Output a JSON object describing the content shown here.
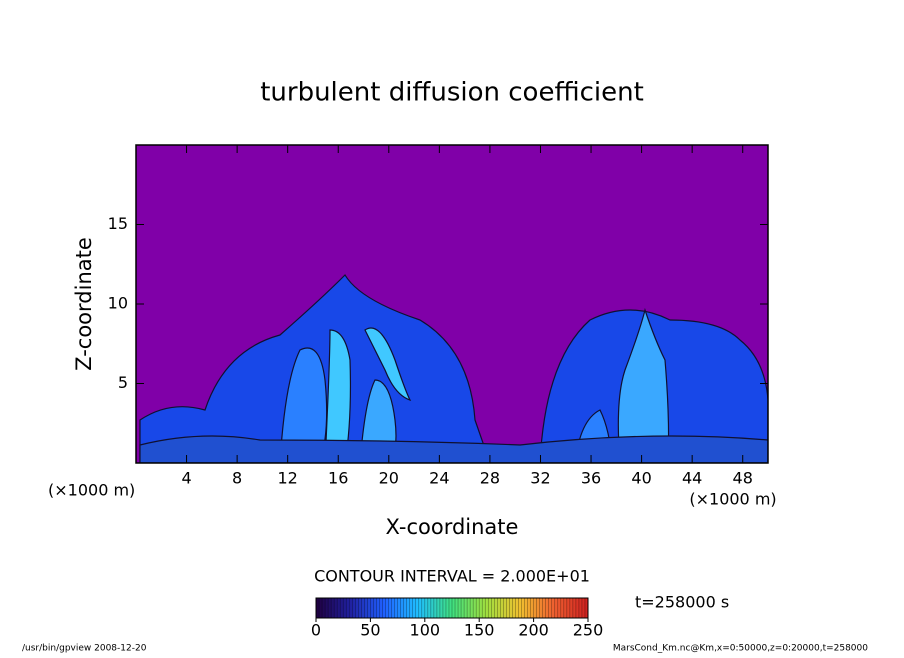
{
  "chart_data": {
    "type": "contour",
    "title": "turbulent diffusion coefficient",
    "x_label": "X-coordinate",
    "y_label": "Z-coordinate",
    "x_unit_label": "(×1000 m)",
    "y_unit_label": "(×1000 m)",
    "xlim": [
      0,
      50
    ],
    "xticks": [
      4,
      8,
      12,
      16,
      20,
      24,
      28,
      32,
      36,
      40,
      44,
      48
    ],
    "ylim": [
      0,
      20
    ],
    "yticks": [
      5,
      10,
      15
    ],
    "background_color": "#8000a8",
    "contour_interval_label": "CONTOUR INTERVAL = 2.000E+01",
    "time_label": "t=258000 s",
    "colorbar": {
      "lim": [
        0,
        250
      ],
      "ticks": [
        0,
        50,
        100,
        150,
        200,
        250
      ],
      "colors": [
        "#200040",
        "#2020a0",
        "#2060ff",
        "#20c0ff",
        "#40e080",
        "#a0e040",
        "#f0c030",
        "#f06030",
        "#d02020"
      ]
    },
    "footer_left": "/usr/bin/gpview   2008-12-20",
    "footer_right": "MarsCond_Km.nc@Km,x=0:50000,z=0:20000,t=258000"
  }
}
